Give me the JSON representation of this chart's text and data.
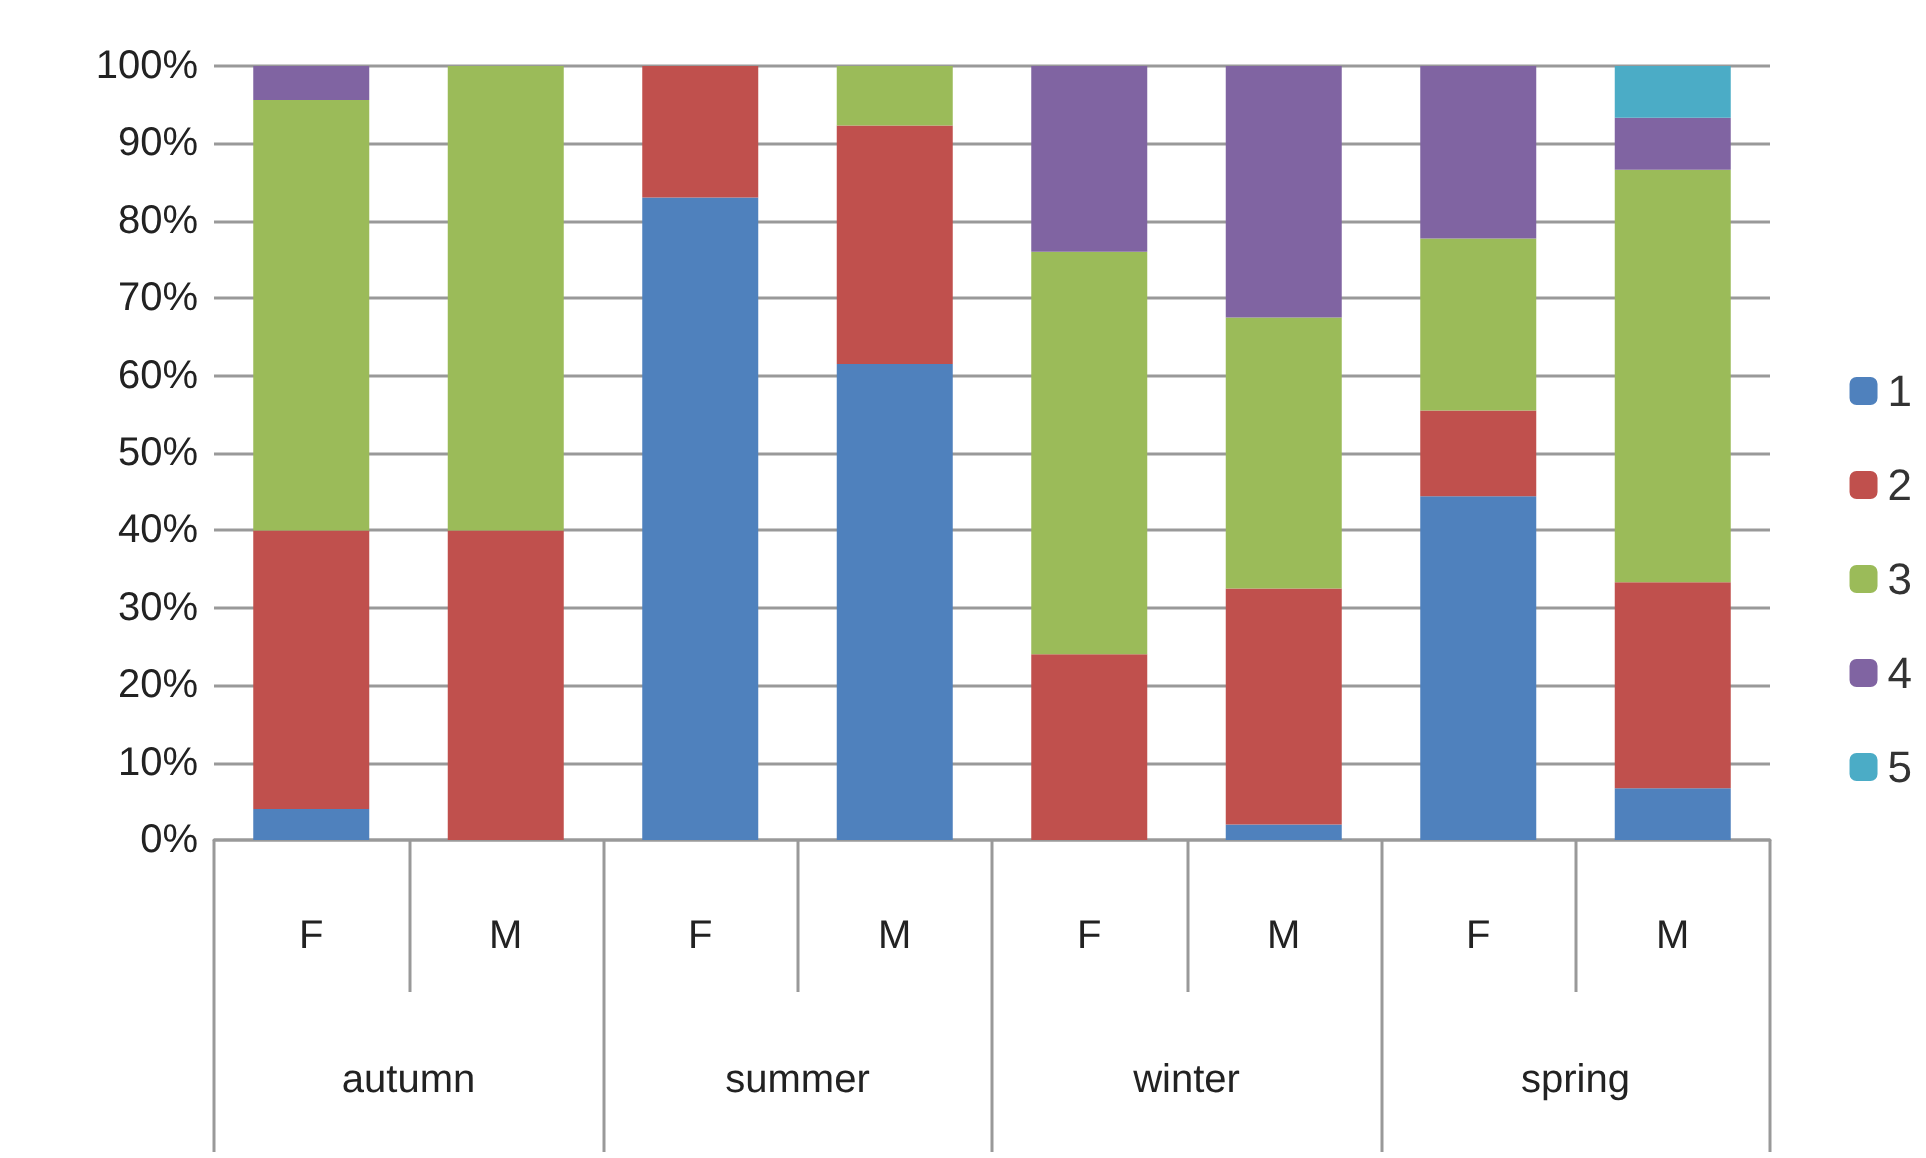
{
  "chart_data": {
    "type": "bar",
    "stacked": true,
    "categories": [
      "F",
      "M",
      "F",
      "M",
      "F",
      "M",
      "F",
      "M"
    ],
    "annotations": [
      "autumn",
      "summer",
      "winter",
      "spring"
    ],
    "series": [
      {
        "name": "1",
        "color": "#4f81bd",
        "values": [
          4,
          0,
          83,
          61.5,
          0,
          2,
          44.4,
          6.7
        ]
      },
      {
        "name": "2",
        "color": "#c0504d",
        "values": [
          36,
          40,
          17,
          30.8,
          24,
          30.5,
          11.1,
          26.6
        ]
      },
      {
        "name": "3",
        "color": "#9bbb59",
        "values": [
          55.6,
          60,
          0,
          7.7,
          52,
          35,
          22.2,
          53.3
        ]
      },
      {
        "name": "4",
        "color": "#8064a2",
        "values": [
          4.4,
          0,
          0,
          0,
          24,
          32.5,
          22.3,
          6.7
        ]
      },
      {
        "name": "5",
        "color": "#4bacc6",
        "values": [
          0,
          0,
          0,
          0,
          0,
          0,
          0,
          6.7
        ]
      }
    ],
    "ylim": [
      0,
      100
    ],
    "yticks": [
      {
        "value": 0,
        "label": "0%"
      },
      {
        "value": 10,
        "label": "10%"
      },
      {
        "value": 20,
        "label": "20%"
      },
      {
        "value": 30,
        "label": "30%"
      },
      {
        "value": 40,
        "label": "40%"
      },
      {
        "value": 50,
        "label": "50%"
      },
      {
        "value": 60,
        "label": "60%"
      },
      {
        "value": 70,
        "label": "70%"
      },
      {
        "value": 80,
        "label": "80%"
      },
      {
        "value": 90,
        "label": "90%"
      },
      {
        "value": 100,
        "label": "100%"
      }
    ],
    "grid": "y",
    "legend": "right"
  }
}
